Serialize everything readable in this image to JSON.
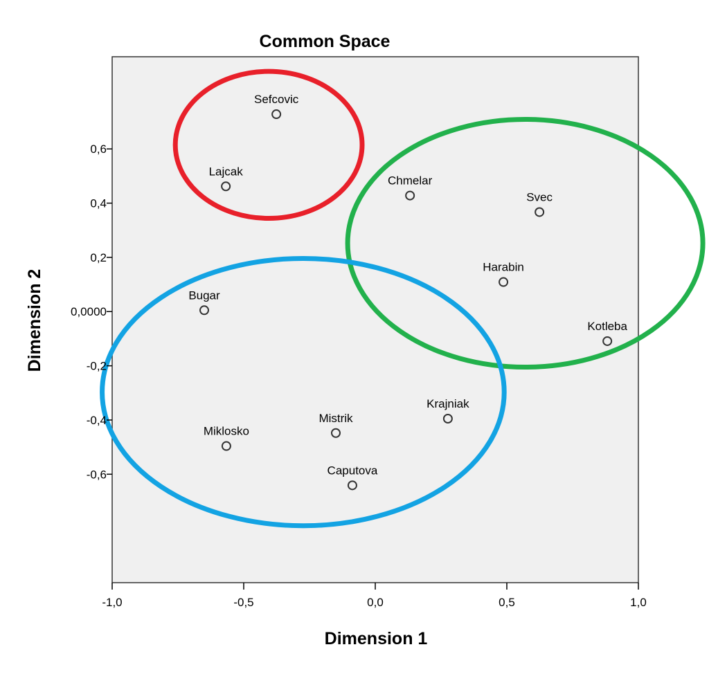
{
  "chart_data": {
    "type": "scatter",
    "title": "Common Space",
    "xlabel": "Dimension 1",
    "ylabel": "Dimension 2",
    "xlim": [
      -1.0,
      1.0
    ],
    "ylim": [
      -1.0,
      0.94
    ],
    "grid": false,
    "x_ticks": [
      {
        "value": -1.0,
        "label": "-1,0"
      },
      {
        "value": -0.5,
        "label": "-0,5"
      },
      {
        "value": 0.0,
        "label": "0,0"
      },
      {
        "value": 0.5,
        "label": "0,5"
      },
      {
        "value": 1.0,
        "label": "1,0"
      }
    ],
    "y_ticks": [
      {
        "value": 0.6,
        "label": "0,6"
      },
      {
        "value": 0.4,
        "label": "0,4"
      },
      {
        "value": 0.2,
        "label": "0,2"
      },
      {
        "value": 0.0,
        "label": "0,0000"
      },
      {
        "value": -0.2,
        "label": "-0,2"
      },
      {
        "value": -0.4,
        "label": "-0,4"
      },
      {
        "value": -0.6,
        "label": "-0,6"
      }
    ],
    "points": [
      {
        "label": "Sefcovic",
        "x": -0.376,
        "y": 0.728
      },
      {
        "label": "Lajcak",
        "x": -0.568,
        "y": 0.462
      },
      {
        "label": "Chmelar",
        "x": 0.132,
        "y": 0.428
      },
      {
        "label": "Svec",
        "x": 0.624,
        "y": 0.367
      },
      {
        "label": "Harabin",
        "x": 0.487,
        "y": 0.109
      },
      {
        "label": "Kotleba",
        "x": 0.882,
        "y": -0.109
      },
      {
        "label": "Bugar",
        "x": -0.65,
        "y": 0.005
      },
      {
        "label": "Krajniak",
        "x": 0.276,
        "y": -0.395
      },
      {
        "label": "Mistrik",
        "x": -0.15,
        "y": -0.448
      },
      {
        "label": "Miklosko",
        "x": -0.566,
        "y": -0.496
      },
      {
        "label": "Caputova",
        "x": -0.087,
        "y": -0.641
      }
    ],
    "clusters": [
      {
        "color": "#e8202a",
        "cx": -0.405,
        "cy": 0.615,
        "rx": 0.355,
        "ry": 0.271
      },
      {
        "color": "#22b14c",
        "cx": 0.57,
        "cy": 0.252,
        "rx": 0.675,
        "ry": 0.457
      },
      {
        "color": "#13a3e3",
        "cx": -0.274,
        "cy": -0.297,
        "rx": 0.764,
        "ry": 0.493
      }
    ],
    "colors": {
      "plot_background": "#f0f0f0",
      "marker": "#333333"
    }
  }
}
